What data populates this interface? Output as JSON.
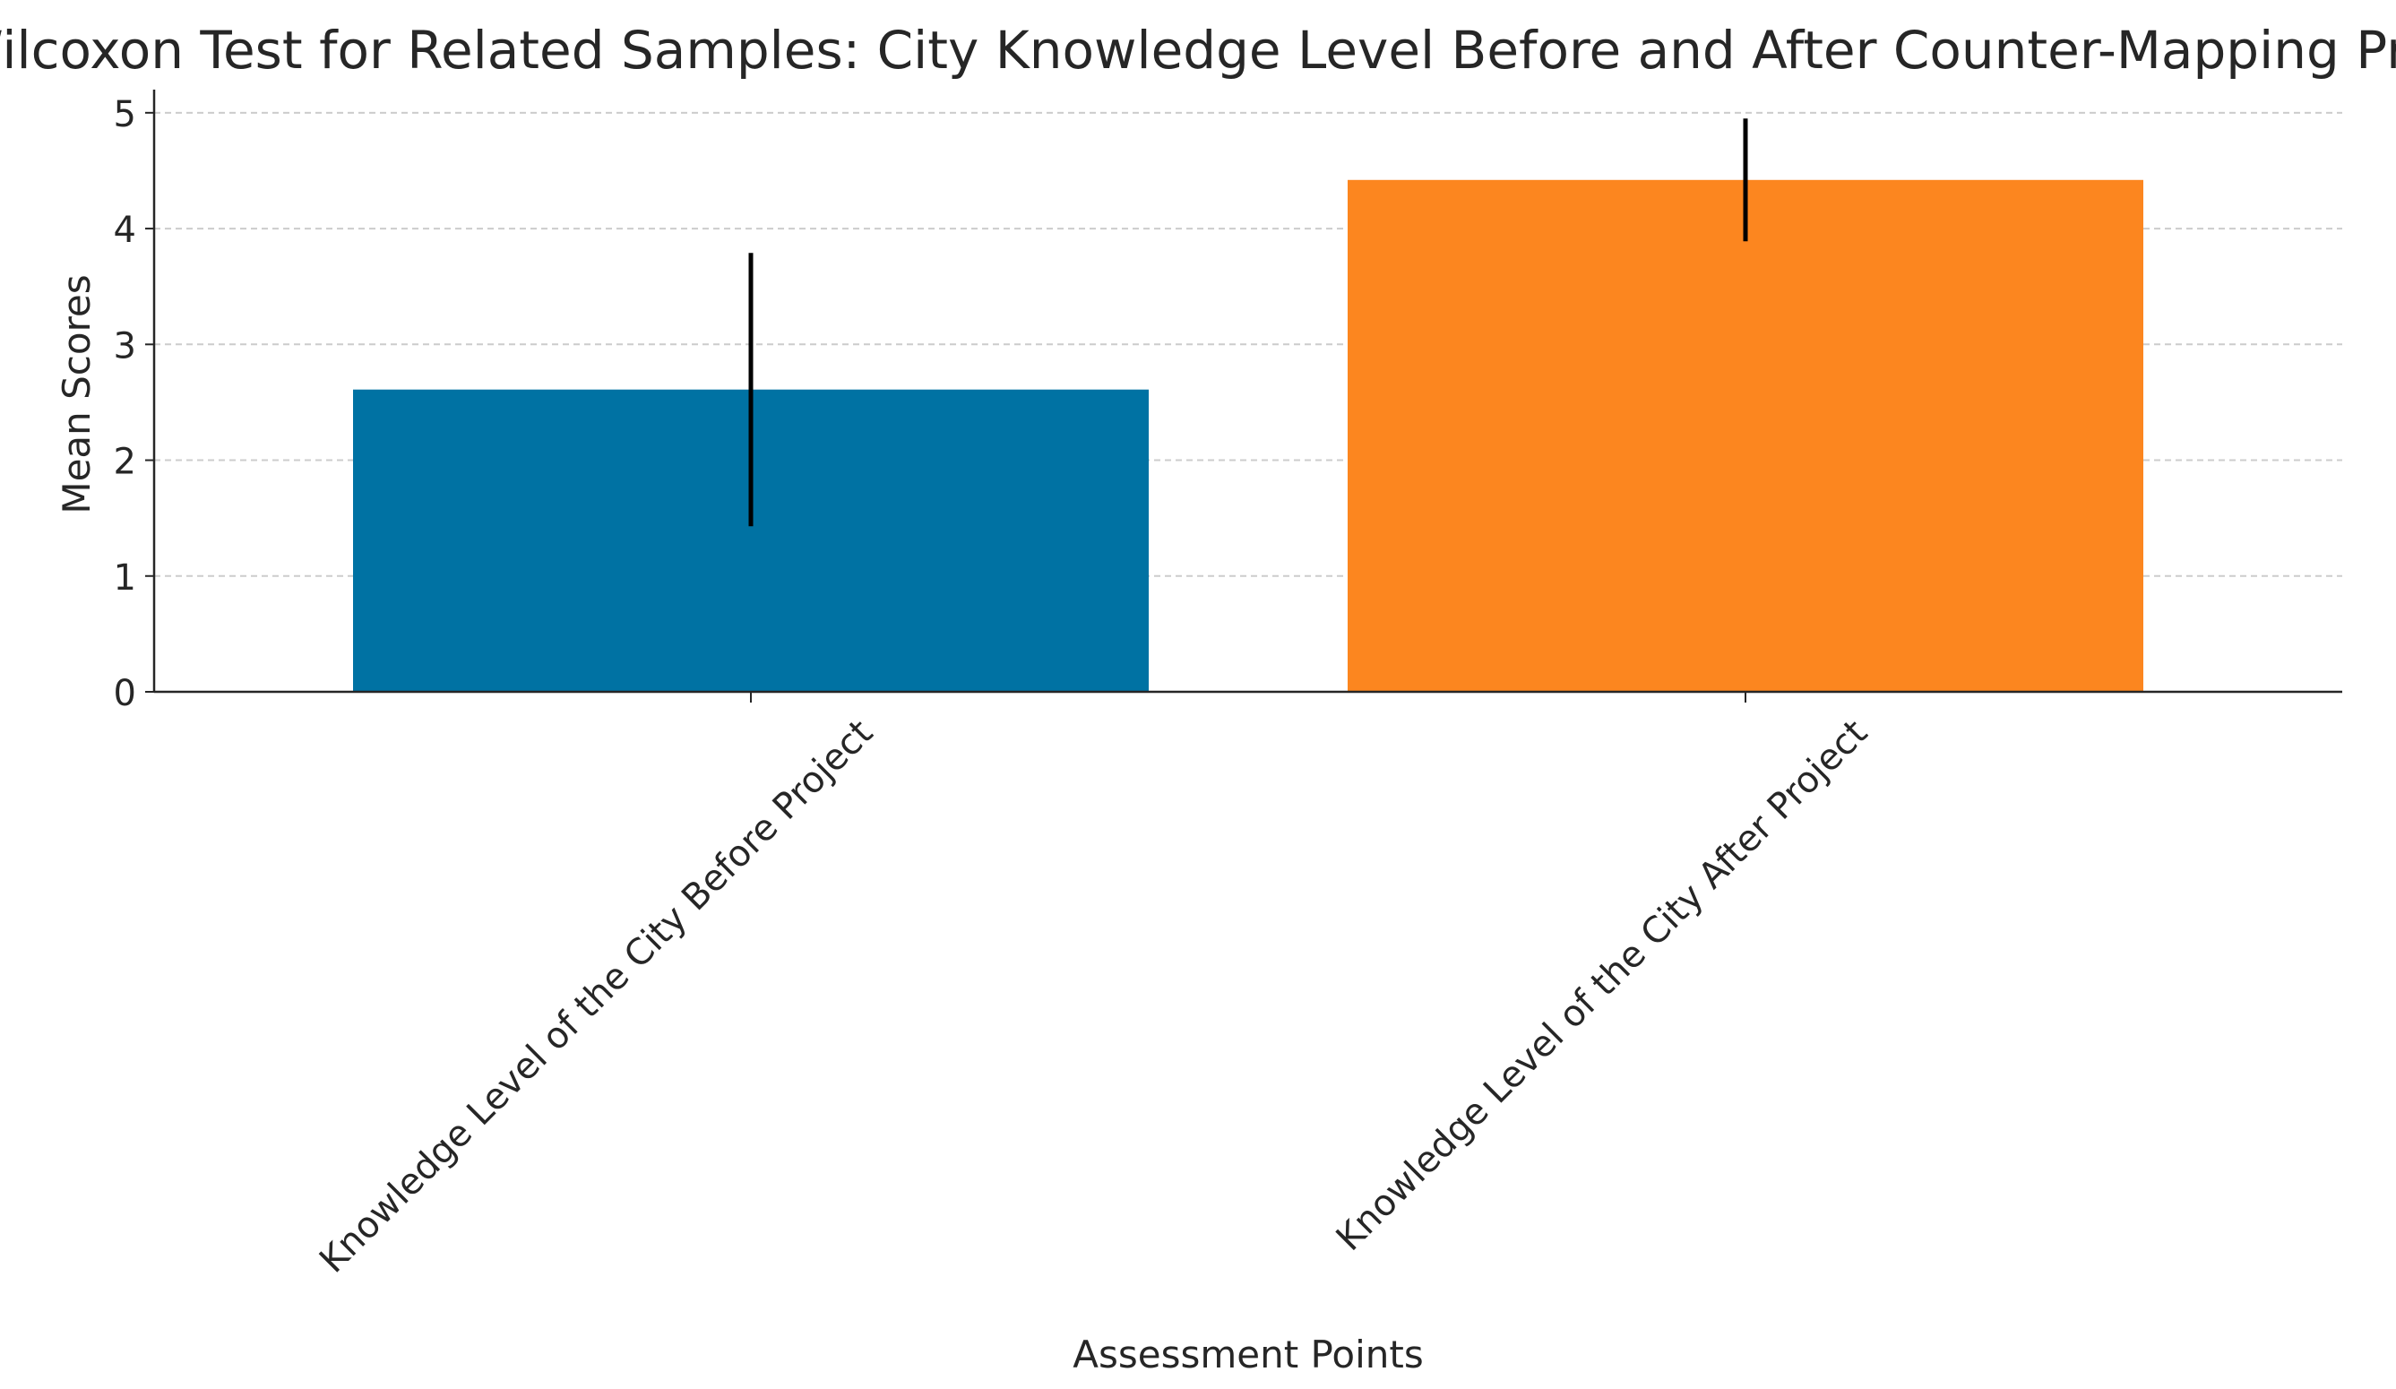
{
  "chart_data": {
    "type": "bar",
    "title": "Wilcoxon Test for Related Samples: City Knowledge Level Before and After Counter-Mapping Project",
    "xlabel": "Assessment Points",
    "ylabel": "Mean Scores",
    "categories": [
      "Knowledge Level of the City Before Project",
      "Knowledge Level of the City After Project"
    ],
    "values": [
      2.61,
      4.42
    ],
    "error_low": [
      1.43,
      3.89
    ],
    "error_high": [
      3.79,
      4.95
    ],
    "colors": [
      "#0072a3",
      "#fc861f"
    ],
    "ylim": [
      0,
      5.2
    ],
    "yticks": [
      0,
      1,
      2,
      3,
      4,
      5
    ],
    "grid": "horizontal dashed",
    "legend": "none"
  }
}
